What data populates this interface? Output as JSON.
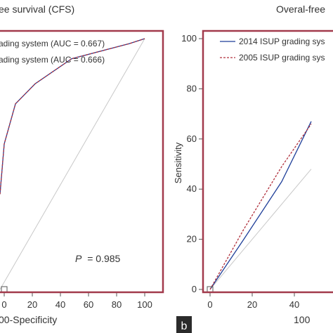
{
  "panel_b_label": "b",
  "chart_data": [
    {
      "type": "line",
      "title": "ee survival (CFS)",
      "xlabel": "00-Specificity",
      "ylabel": "",
      "xlim": [
        -3,
        105
      ],
      "ylim": [
        0,
        100
      ],
      "xticks": [
        "0",
        "20",
        "40",
        "60",
        "80",
        "100"
      ],
      "yticks": [],
      "legend_position": "top-left",
      "series": [
        {
          "name": "ading system (AUC = 0.667)",
          "color": "#1f3f99",
          "dash": "solid",
          "x": [
            -3,
            0,
            8,
            22,
            48,
            89,
            100
          ],
          "y": [
            38,
            58,
            74,
            82,
            92,
            98,
            100
          ]
        },
        {
          "name": "ading system (AUC = 0.666)",
          "color": "#b0303c",
          "dash": "dashed",
          "x": [
            -3,
            0,
            8,
            22,
            48,
            89,
            100
          ],
          "y": [
            38,
            58,
            74,
            82,
            92,
            98,
            100
          ]
        }
      ],
      "reference_line": {
        "x": [
          -3,
          100
        ],
        "y": [
          0,
          100
        ],
        "color": "#c8c8c8"
      },
      "annotation": {
        "italic": "P",
        "text": "= 0.985",
        "x": 40,
        "y": 12
      }
    },
    {
      "type": "line",
      "title": "Overal-free",
      "xlabel": "100",
      "ylabel": "Sensitivity",
      "xlim": [
        0,
        48
      ],
      "ylim": [
        0,
        100
      ],
      "xticks": [
        "0",
        "20",
        "40"
      ],
      "yticks": [
        "0",
        "20",
        "40",
        "60",
        "80",
        "100"
      ],
      "legend_position": "top-left",
      "series": [
        {
          "name": "2014 ISUP grading sys",
          "color": "#1f3f99",
          "dash": "solid",
          "x": [
            0,
            16,
            34,
            48
          ],
          "y": [
            0,
            20,
            43,
            67
          ]
        },
        {
          "name": "2005 ISUP grading sys",
          "color": "#b0303c",
          "dash": "dashed",
          "x": [
            0,
            16,
            34,
            48
          ],
          "y": [
            0,
            24,
            49,
            66
          ]
        }
      ],
      "reference_line": {
        "x": [
          0,
          48
        ],
        "y": [
          0,
          48
        ],
        "color": "#c8c8c8"
      }
    }
  ]
}
